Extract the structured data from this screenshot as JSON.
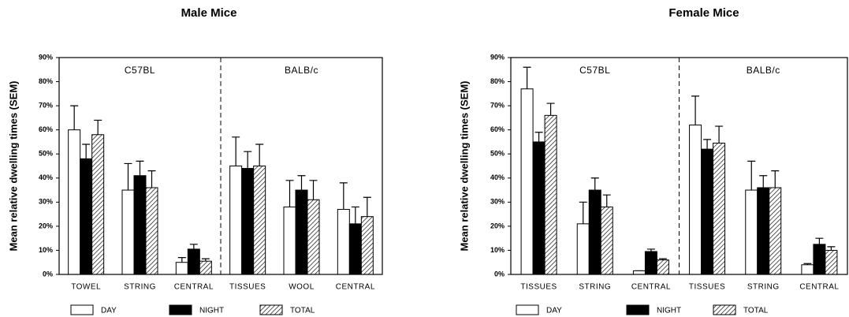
{
  "chart_data": [
    {
      "type": "bar",
      "title": "Male Mice",
      "y_label": "Mean relative dwelling times (SEM)",
      "categories": [
        "TOWEL",
        "STRING",
        "CENTRAL",
        "TISSUES",
        "WOOL",
        "CENTRAL"
      ],
      "groups": [
        "C57BL",
        "BALB/c"
      ],
      "series": [
        {
          "name": "DAY",
          "color": "#ffffff",
          "values": [
            60,
            35,
            5,
            45,
            28,
            27
          ],
          "errors": [
            10,
            11,
            2,
            12,
            11,
            11
          ]
        },
        {
          "name": "NIGHT",
          "color": "#000000",
          "values": [
            48,
            41,
            10.5,
            44,
            35,
            21
          ],
          "errors": [
            6,
            6,
            2,
            7,
            6,
            7
          ]
        },
        {
          "name": "TOTAL",
          "color": "#000000",
          "pattern": "hatch",
          "values": [
            58,
            36,
            5.5,
            45,
            31,
            24
          ],
          "errors": [
            6,
            7,
            1,
            9,
            8,
            8
          ]
        }
      ],
      "ylim": [
        0,
        90
      ],
      "yticks": [
        {
          "value": 0,
          "label": "0%"
        },
        {
          "value": 10,
          "label": "10%"
        },
        {
          "value": 20,
          "label": "20%"
        },
        {
          "value": 30,
          "label": "30%"
        },
        {
          "value": 40,
          "label": "40%"
        },
        {
          "value": 50,
          "label": "50%"
        },
        {
          "value": 60,
          "label": "60%"
        },
        {
          "value": 70,
          "label": "70%"
        },
        {
          "value": 80,
          "label": "80%"
        },
        {
          "value": 90,
          "label": "90%"
        }
      ],
      "grid": false,
      "legend": "bottom"
    },
    {
      "type": "bar",
      "title": "Female Mice",
      "y_label": "Mean relative dwelling times (SEM)",
      "categories": [
        "TISSUES",
        "STRING",
        "CENTRAL",
        "TISSUES",
        "STRING",
        "CENTRAL"
      ],
      "groups": [
        "C57BL",
        "BALB/c"
      ],
      "series": [
        {
          "name": "DAY",
          "color": "#ffffff",
          "values": [
            77,
            21,
            1.5,
            62,
            35,
            4
          ],
          "errors": [
            9,
            9,
            0,
            12,
            12,
            0.5
          ]
        },
        {
          "name": "NIGHT",
          "color": "#000000",
          "values": [
            55,
            35,
            9.5,
            52,
            36,
            12.5
          ],
          "errors": [
            4,
            5,
            1,
            4,
            5,
            2.5
          ]
        },
        {
          "name": "TOTAL",
          "color": "#000000",
          "pattern": "hatch",
          "values": [
            66,
            28,
            6,
            54.5,
            36,
            10
          ],
          "errors": [
            5,
            5,
            0.5,
            7,
            7,
            1.5
          ]
        }
      ],
      "ylim": [
        0,
        90
      ],
      "yticks": [
        {
          "value": 0,
          "label": "0%"
        },
        {
          "value": 10,
          "label": "10%"
        },
        {
          "value": 20,
          "label": "20%"
        },
        {
          "value": 30,
          "label": "30%"
        },
        {
          "value": 40,
          "label": "40%"
        },
        {
          "value": 50,
          "label": "50%"
        },
        {
          "value": 60,
          "label": "60%"
        },
        {
          "value": 70,
          "label": "70%"
        },
        {
          "value": 80,
          "label": "80%"
        },
        {
          "value": 90,
          "label": "90%"
        }
      ],
      "grid": false,
      "legend": "bottom"
    }
  ]
}
